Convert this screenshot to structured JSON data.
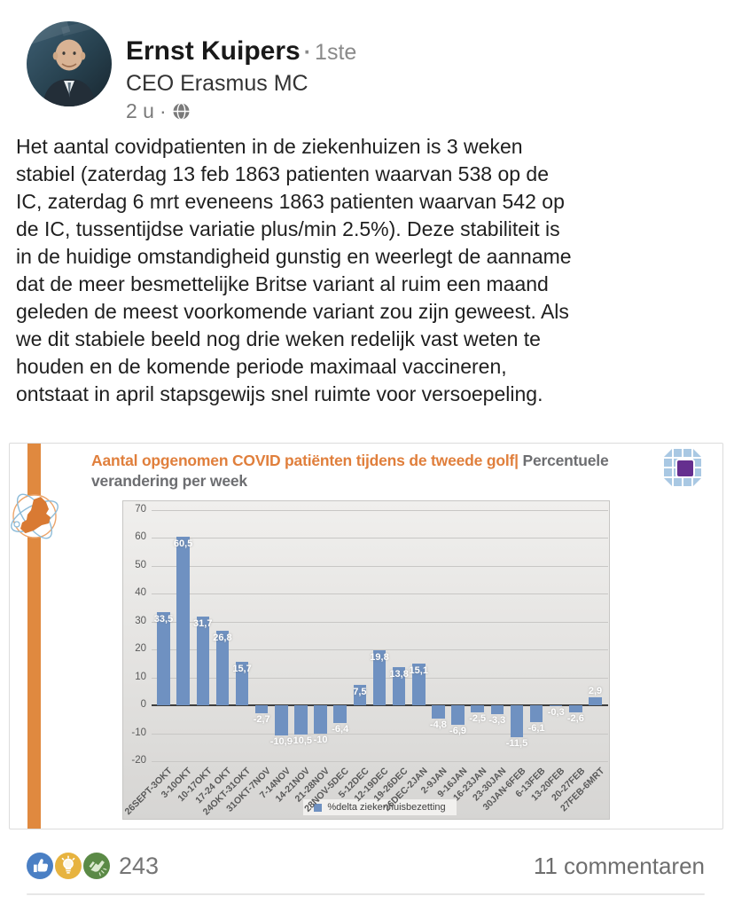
{
  "post": {
    "author": {
      "name": "Ernst Kuipers",
      "dot": "·",
      "degree": "1ste",
      "headline": "CEO Erasmus MC",
      "time": "2 u",
      "time_dot": "·",
      "visibility_icon": "globe-icon"
    },
    "lines": [
      "Het aantal covidpatienten in de ziekenhuizen is 3 weken",
      "stabiel (zaterdag 13 feb 1863 patienten waarvan 538 op de",
      "IC, zaterdag 6 mrt eveneens 1863 patienten waarvan 542 op",
      "de IC, tussentijdse variatie plus/min 2.5%). Deze stabiliteit is",
      "in de huidige omstandigheid gunstig en weerlegt de aanname",
      "dat de meer besmettelijke Britse variant al ruim een maand",
      "geleden de meest voorkomende variant zou zijn geweest. Als",
      "we dit stabiele beeld nog drie weken redelijk vast weten te",
      "houden en de komende periode maximaal vaccineren,",
      "ontstaat in april stapsgewijs snel ruimte voor versoepeling."
    ]
  },
  "chart_card": {
    "title_orange": "Aantal opgenomen COVID patiënten tijdens de tweede golf|",
    "title_gray": " Percentuele verandering per week",
    "accent_orange": "#e0893f"
  },
  "chart_data": {
    "type": "bar",
    "title": "Aantal opgenomen COVID patiënten tijdens de tweede golf | Percentuele verandering per week",
    "categories": [
      "26SEPT-3OKT",
      "3-10OKT",
      "10-17OKT",
      "17-24 OKT",
      "24OKT-31OKT",
      "31OKT-7NOV",
      "7-14NOV",
      "14-21NOV",
      "21-28NOV",
      "28NOV-5DEC",
      "5-12DEC",
      "12-19DEC",
      "19-26DEC",
      "26DEC-2JAN",
      "2-9JAN",
      "9-16JAN",
      "16-23JAN",
      "23-30JAN",
      "30JAN-6FEB",
      "6-13FEB",
      "13-20FEB",
      "20-27FEB",
      "27FEB-6MRT"
    ],
    "values": [
      33.5,
      60.5,
      31.7,
      26.8,
      15.7,
      -2.7,
      -10.9,
      -10.5,
      -10,
      -6.4,
      7.5,
      19.8,
      13.8,
      15.1,
      -4.8,
      -6.9,
      -2.5,
      -3.3,
      -11.5,
      -6.1,
      -0.3,
      -2.6,
      2.9
    ],
    "ylim": [
      -20,
      70
    ],
    "yticks": [
      70,
      60,
      50,
      40,
      30,
      20,
      10,
      0,
      -10,
      -20
    ],
    "legend": "%delta ziekenhuisbezetting",
    "legend_position": "bottom-center",
    "grid": true,
    "bar_color": "#6f91c1",
    "decimal_separator": ","
  },
  "footer": {
    "reactions_count": "243",
    "reaction_icons": [
      "like-thumb-icon",
      "insightful-lightbulb-icon",
      "celebrate-clap-icon"
    ],
    "comments_label": "11 commentaren"
  }
}
